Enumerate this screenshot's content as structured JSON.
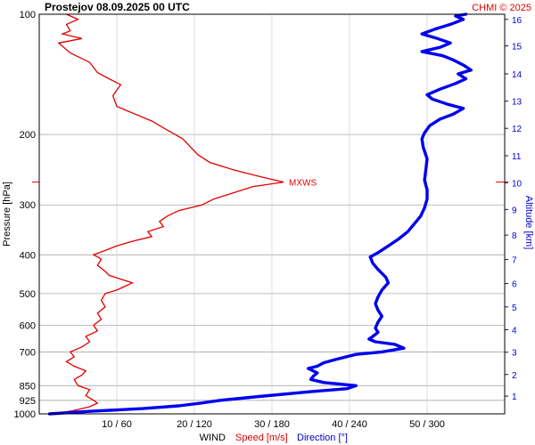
{
  "header": {
    "title": "Prostejov    08.09.2025 00 UTC",
    "credit": "CHMI © 2025"
  },
  "chart_data": {
    "type": "line",
    "y_axis": {
      "label": "Pressure [hPa]",
      "scale": "log",
      "range": [
        1000,
        100
      ],
      "ticks": [
        100,
        200,
        300,
        400,
        500,
        600,
        700,
        850,
        925,
        1000
      ],
      "tick_labels": [
        "100",
        "200",
        "300",
        "400",
        "500",
        "600",
        "700",
        "850",
        "925",
        "1000"
      ]
    },
    "x_axis": {
      "label": "WIND",
      "speed_label": "Speed [m/s]",
      "direction_label": "Direction [°]",
      "speed_range": [
        0,
        60
      ],
      "direction_range": [
        0,
        360
      ],
      "ticks_speed": [
        10,
        20,
        30,
        40,
        50
      ],
      "tick_labels": [
        "10 / 60",
        "20 / 120",
        "30 / 180",
        "40 / 240",
        "50 / 300"
      ]
    },
    "right_axis": {
      "label": "Altitude [km]",
      "tick_labels": [
        "1",
        "2",
        "3",
        "4",
        "5",
        "6",
        "7",
        "8",
        "9",
        "10",
        "11",
        "12",
        "13",
        "14",
        "15",
        "16"
      ],
      "tick_pressures": [
        903,
        797,
        701,
        616,
        540,
        472,
        411,
        357,
        308,
        264,
        226,
        193,
        165,
        141,
        120,
        103
      ]
    },
    "annotation": {
      "text": "MXWS",
      "pressure": 263,
      "speed": 31.5
    },
    "grid": true,
    "series": [
      {
        "name": "Speed [m/s]",
        "color": "#e00000",
        "points": [
          [
            1000,
            2.0
          ],
          [
            980,
            4.5
          ],
          [
            960,
            6.5
          ],
          [
            940,
            7.5
          ],
          [
            925,
            7.0
          ],
          [
            900,
            6.0
          ],
          [
            870,
            6.5
          ],
          [
            850,
            5.0
          ],
          [
            820,
            4.5
          ],
          [
            800,
            5.5
          ],
          [
            780,
            6.0
          ],
          [
            760,
            4.5
          ],
          [
            740,
            3.5
          ],
          [
            720,
            4.5
          ],
          [
            700,
            4.0
          ],
          [
            680,
            5.5
          ],
          [
            660,
            6.5
          ],
          [
            640,
            6.0
          ],
          [
            620,
            7.5
          ],
          [
            600,
            7.0
          ],
          [
            580,
            8.0
          ],
          [
            560,
            7.5
          ],
          [
            540,
            8.5
          ],
          [
            520,
            8.0
          ],
          [
            500,
            8.5
          ],
          [
            490,
            10.0
          ],
          [
            480,
            11.0
          ],
          [
            470,
            12.0
          ],
          [
            460,
            10.5
          ],
          [
            450,
            9.0
          ],
          [
            440,
            8.5
          ],
          [
            425,
            7.5
          ],
          [
            410,
            8.0
          ],
          [
            400,
            7.0
          ],
          [
            390,
            8.5
          ],
          [
            380,
            10.0
          ],
          [
            370,
            12.0
          ],
          [
            360,
            14.5
          ],
          [
            350,
            14.0
          ],
          [
            340,
            16.0
          ],
          [
            330,
            15.5
          ],
          [
            320,
            16.5
          ],
          [
            310,
            18.0
          ],
          [
            300,
            21.0
          ],
          [
            290,
            22.5
          ],
          [
            280,
            25.0
          ],
          [
            270,
            27.5
          ],
          [
            263,
            31.5
          ],
          [
            255,
            28.5
          ],
          [
            245,
            25.0
          ],
          [
            235,
            22.0
          ],
          [
            225,
            20.5
          ],
          [
            215,
            19.5
          ],
          [
            205,
            18.5
          ],
          [
            195,
            16.5
          ],
          [
            185,
            14.5
          ],
          [
            175,
            11.5
          ],
          [
            170,
            10.0
          ],
          [
            160,
            9.5
          ],
          [
            150,
            10.5
          ],
          [
            145,
            9.0
          ],
          [
            140,
            7.5
          ],
          [
            132,
            6.5
          ],
          [
            125,
            4.0
          ],
          [
            118,
            2.5
          ],
          [
            115,
            5.5
          ],
          [
            112,
            3.0
          ],
          [
            110,
            4.0
          ],
          [
            106,
            3.5
          ],
          [
            103,
            5.0
          ],
          [
            100,
            3.5
          ]
        ]
      },
      {
        "name": "Direction [°]",
        "color": "#0000ee",
        "points": [
          [
            1000,
            8
          ],
          [
            985,
            40
          ],
          [
            970,
            80
          ],
          [
            955,
            108
          ],
          [
            940,
            125
          ],
          [
            925,
            140
          ],
          [
            905,
            170
          ],
          [
            880,
            210
          ],
          [
            865,
            238
          ],
          [
            850,
            245
          ],
          [
            835,
            220
          ],
          [
            820,
            210
          ],
          [
            805,
            212
          ],
          [
            790,
            215
          ],
          [
            770,
            208
          ],
          [
            760,
            215
          ],
          [
            745,
            220
          ],
          [
            730,
            230
          ],
          [
            710,
            245
          ],
          [
            700,
            265
          ],
          [
            685,
            282
          ],
          [
            670,
            275
          ],
          [
            660,
            260
          ],
          [
            650,
            255
          ],
          [
            640,
            258
          ],
          [
            625,
            262
          ],
          [
            610,
            260
          ],
          [
            590,
            262
          ],
          [
            570,
            265
          ],
          [
            550,
            262
          ],
          [
            530,
            260
          ],
          [
            510,
            262
          ],
          [
            490,
            265
          ],
          [
            470,
            270
          ],
          [
            455,
            268
          ],
          [
            435,
            262
          ],
          [
            420,
            258
          ],
          [
            405,
            256
          ],
          [
            395,
            262
          ],
          [
            380,
            270
          ],
          [
            365,
            278
          ],
          [
            350,
            285
          ],
          [
            335,
            290
          ],
          [
            320,
            295
          ],
          [
            305,
            298
          ],
          [
            290,
            300
          ],
          [
            275,
            300
          ],
          [
            260,
            298
          ],
          [
            245,
            299
          ],
          [
            230,
            300
          ],
          [
            215,
            297
          ],
          [
            205,
            296
          ],
          [
            198,
            298
          ],
          [
            190,
            302
          ],
          [
            183,
            310
          ],
          [
            178,
            320
          ],
          [
            172,
            328
          ],
          [
            168,
            316
          ],
          [
            163,
            304
          ],
          [
            159,
            300
          ],
          [
            154,
            310
          ],
          [
            149,
            322
          ],
          [
            145,
            330
          ],
          [
            141,
            324
          ],
          [
            138,
            334
          ],
          [
            134,
            328
          ],
          [
            130,
            320
          ],
          [
            127,
            312
          ],
          [
            124,
            296
          ],
          [
            121,
            310
          ],
          [
            118,
            318
          ],
          [
            115,
            308
          ],
          [
            112,
            296
          ],
          [
            109,
            306
          ],
          [
            106,
            318
          ],
          [
            103,
            328
          ],
          [
            101,
            322
          ],
          [
            100,
            330
          ]
        ]
      }
    ]
  }
}
